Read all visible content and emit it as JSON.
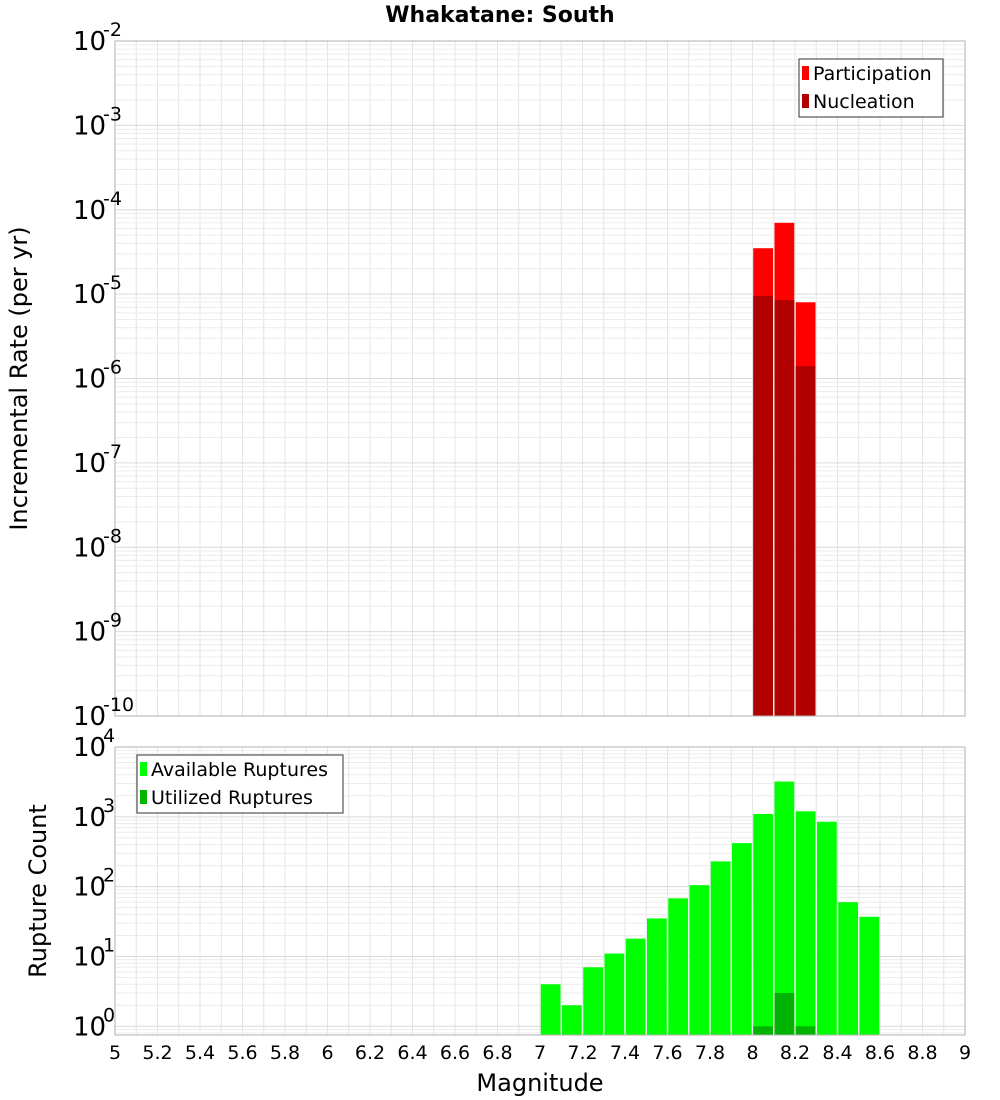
{
  "chart_data": {
    "title": "Whakatane: South",
    "xlabel": "Magnitude",
    "xlim": [
      5,
      9
    ],
    "xticks": [
      "5",
      "5.2",
      "5.4",
      "5.6",
      "5.8",
      "6",
      "6.2",
      "6.4",
      "6.6",
      "6.8",
      "7",
      "7.2",
      "7.4",
      "7.6",
      "7.8",
      "8",
      "8.2",
      "8.4",
      "8.6",
      "8.8",
      "9"
    ],
    "panels": [
      {
        "type": "bar",
        "ylabel": "Incremental Rate (per yr)",
        "yscale": "log",
        "ylim": [
          1e-10,
          0.01
        ],
        "ytick_exponents": [
          "-10",
          "-9",
          "-8",
          "-7",
          "-6",
          "-5",
          "-4",
          "-3",
          "-2"
        ],
        "ytick_base": "10",
        "grid": true,
        "legend_position": "top-right",
        "series": [
          {
            "name": "Participation",
            "color": "#ff0000",
            "x": [
              8.05,
              8.15,
              8.25
            ],
            "values": [
              3.5e-05,
              7e-05,
              8e-06
            ]
          },
          {
            "name": "Nucleation",
            "color": "#b00000",
            "x": [
              8.05,
              8.15,
              8.25
            ],
            "values": [
              9.5e-06,
              8.5e-06,
              1.4e-06
            ]
          }
        ]
      },
      {
        "type": "bar",
        "ylabel": "Rupture Count",
        "yscale": "log",
        "ylim": [
          0.75,
          10000
        ],
        "ytick_exponents": [
          "0",
          "1",
          "2",
          "3",
          "4"
        ],
        "ytick_base": "10",
        "grid": true,
        "legend_position": "top-left",
        "series": [
          {
            "name": "Available Ruptures",
            "color": "#00ff00",
            "x": [
              7.05,
              7.15,
              7.25,
              7.35,
              7.45,
              7.55,
              7.65,
              7.75,
              7.85,
              7.95,
              8.05,
              8.15,
              8.25,
              8.35,
              8.45,
              8.55
            ],
            "values": [
              4,
              2,
              7,
              11,
              18,
              35,
              68,
              105,
              230,
              420,
              1100,
              3200,
              1200,
              850,
              60,
              37
            ]
          },
          {
            "name": "Utilized Ruptures",
            "color": "#00b400",
            "x": [
              8.05,
              8.15,
              8.25
            ],
            "values": [
              1,
              3,
              1
            ]
          }
        ]
      }
    ]
  }
}
